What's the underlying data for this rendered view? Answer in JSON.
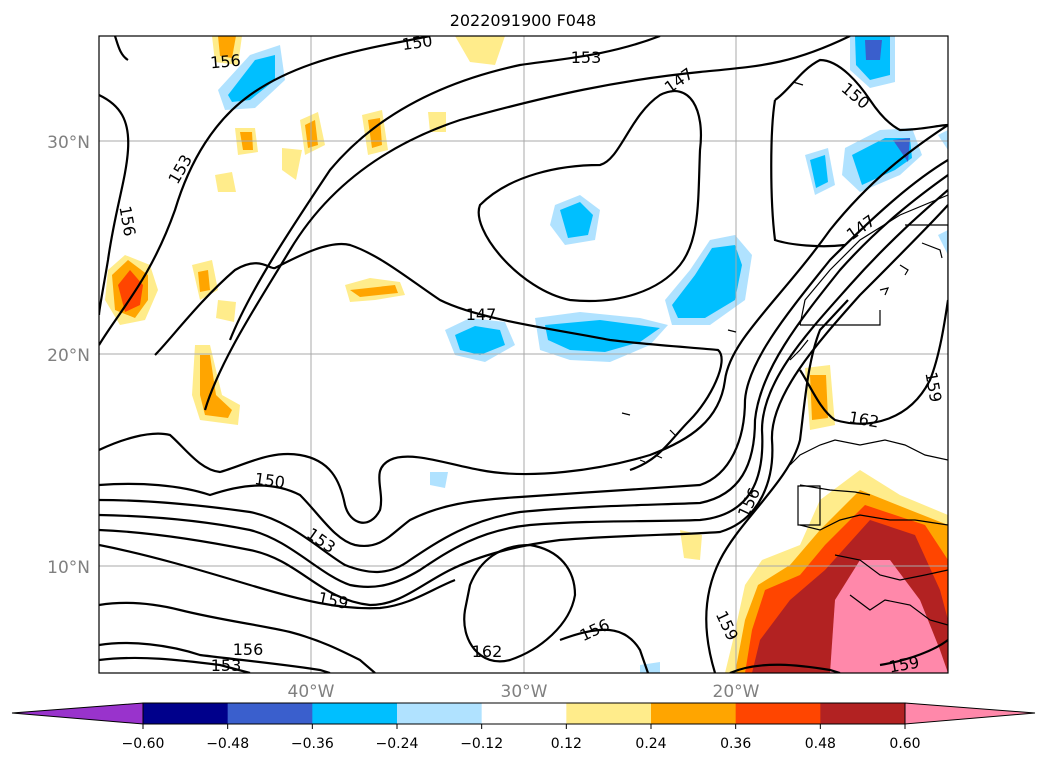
{
  "title": "2022091900 F048",
  "map": {
    "lat_labels": [
      "30°N",
      "20°N",
      "10°N"
    ],
    "lon_labels": [
      "40°W",
      "30°W",
      "20°W"
    ],
    "contour_labels": [
      "150",
      "153",
      "147",
      "156",
      "150",
      "153",
      "156",
      "147",
      "147",
      "162",
      "159",
      "150",
      "156",
      "153",
      "159",
      "159",
      "162",
      "156",
      "156",
      "153",
      "159"
    ]
  },
  "colorbar": {
    "ticks": [
      "−0.60",
      "−0.48",
      "−0.36",
      "−0.24",
      "−0.12",
      "0.12",
      "0.24",
      "0.36",
      "0.48",
      "0.60"
    ],
    "colors": [
      "#9933cc",
      "#00008b",
      "#3a5fcd",
      "#00bfff",
      "#b0e2ff",
      "#ffffff",
      "#ffec8b",
      "#ffa500",
      "#ff4500",
      "#b22222",
      "#ff88aa"
    ]
  }
}
